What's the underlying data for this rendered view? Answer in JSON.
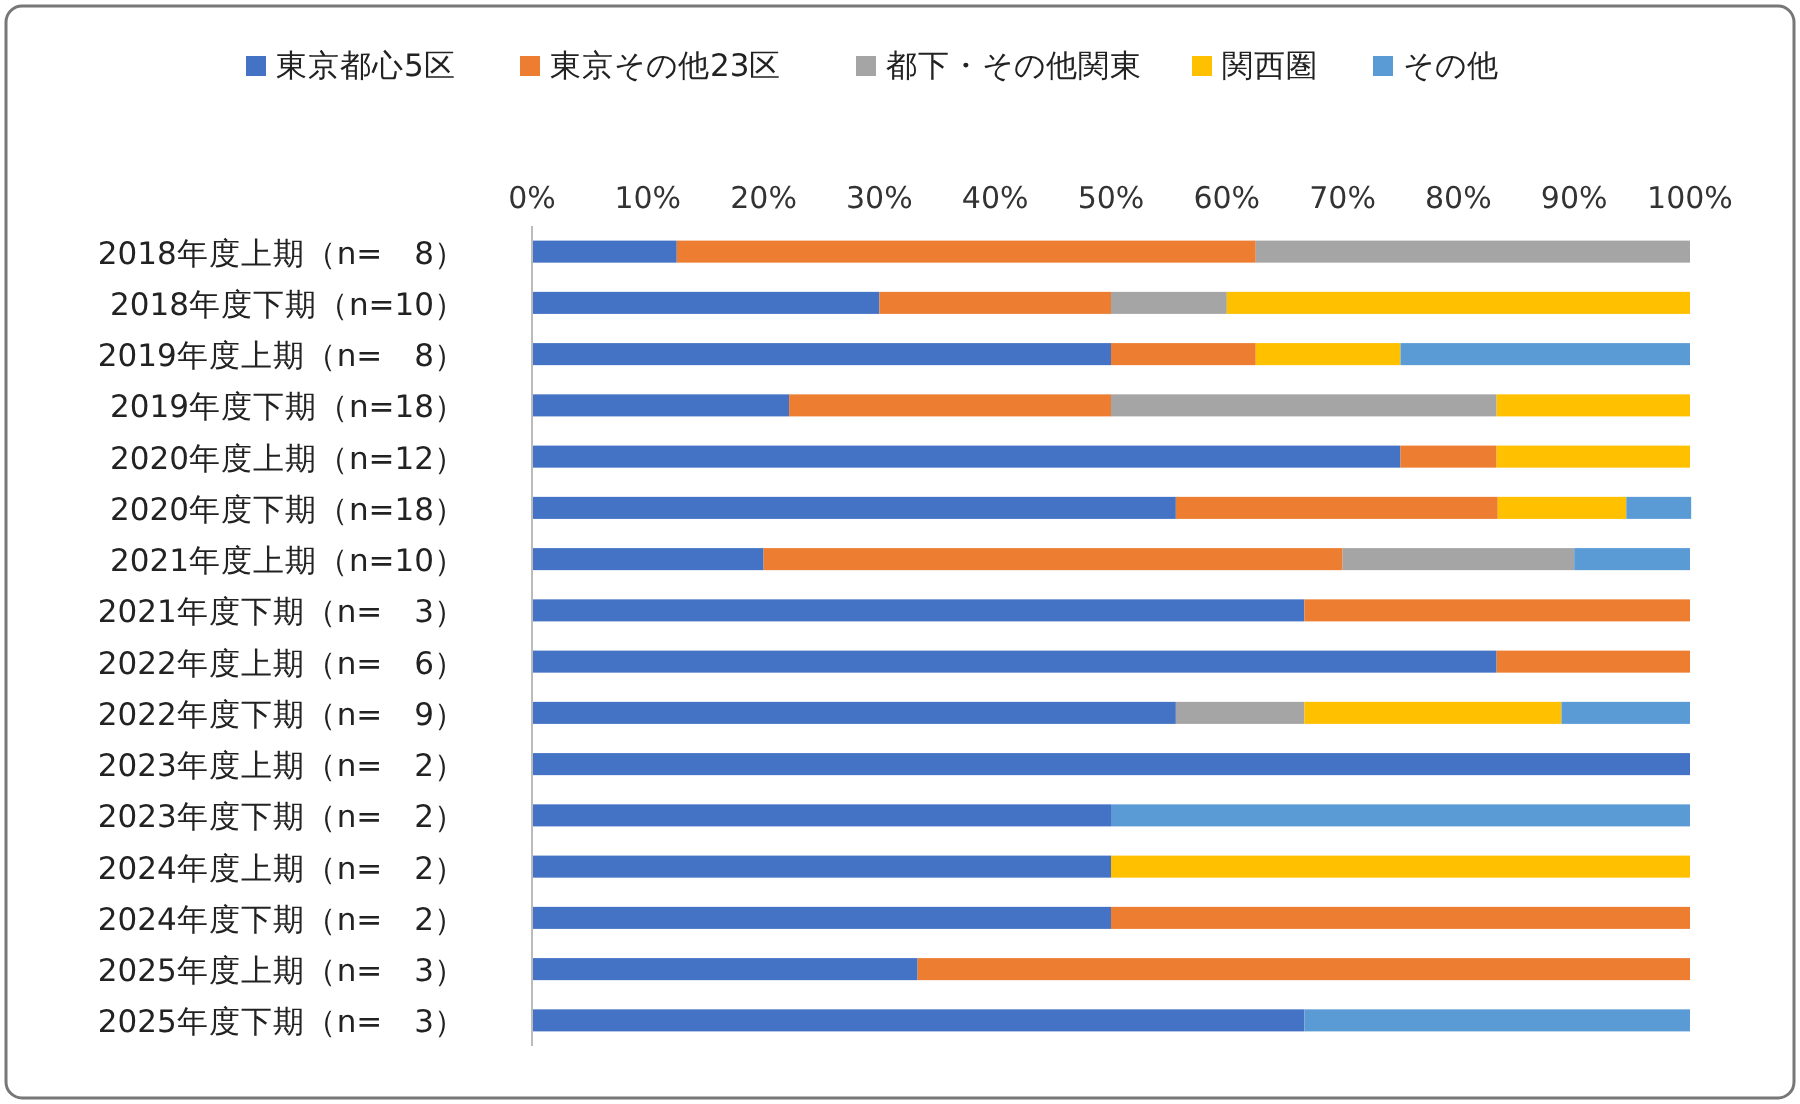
{
  "chart_data": {
    "type": "bar",
    "orientation": "horizontal",
    "stacked": true,
    "legend": "top",
    "categories": [
      "2018年度上期（n=　8）",
      "2018年度下期（n=10）",
      "2019年度上期（n=　8）",
      "2019年度下期（n=18）",
      "2020年度上期（n=12）",
      "2020年度下期（n=18）",
      "2021年度上期（n=10）",
      "2021年度下期（n=　3）",
      "2022年度上期（n=　6）",
      "2022年度下期（n=　9）",
      "2023年度上期（n=　2）",
      "2023年度下期（n=　2）",
      "2024年度上期（n=　2）",
      "2024年度下期（n=　2）",
      "2025年度上期（n=　3）",
      "2025年度下期（n=　3）"
    ],
    "series": [
      {
        "name": "東京都心5区",
        "color": "#4472c4",
        "values": [
          12.5,
          30,
          50,
          22.2,
          75,
          55.6,
          20,
          66.7,
          83.3,
          55.6,
          100,
          50,
          50,
          50,
          33.3,
          66.7
        ]
      },
      {
        "name": "東京その他23区",
        "color": "#ed7d31",
        "values": [
          50,
          20,
          12.5,
          27.8,
          8.3,
          27.8,
          50,
          33.3,
          16.7,
          0,
          0,
          0,
          0,
          50,
          66.7,
          0
        ]
      },
      {
        "name": "都下・その他関東",
        "color": "#a5a5a5",
        "values": [
          37.5,
          10,
          0,
          33.3,
          0,
          0,
          20,
          0,
          0,
          11.1,
          0,
          0,
          0,
          0,
          0,
          0
        ]
      },
      {
        "name": "関西圏",
        "color": "#ffc000",
        "values": [
          0,
          40,
          12.5,
          16.7,
          16.7,
          11.1,
          0,
          0,
          0,
          22.2,
          0,
          0,
          50,
          0,
          0,
          0
        ]
      },
      {
        "name": "その他",
        "color": "#5b9bd5",
        "values": [
          0,
          0,
          25,
          0,
          0,
          5.6,
          10,
          0,
          0,
          11.1,
          0,
          50,
          0,
          0,
          0,
          33.3
        ]
      }
    ],
    "xlim": [
      0,
      100
    ],
    "xticks": [
      {
        "value": 0,
        "label": "0%"
      },
      {
        "value": 10,
        "label": "10%"
      },
      {
        "value": 20,
        "label": "20%"
      },
      {
        "value": 30,
        "label": "30%"
      },
      {
        "value": 40,
        "label": "40%"
      },
      {
        "value": 50,
        "label": "50%"
      },
      {
        "value": 60,
        "label": "60%"
      },
      {
        "value": 70,
        "label": "70%"
      },
      {
        "value": 80,
        "label": "80%"
      },
      {
        "value": 90,
        "label": "90%"
      },
      {
        "value": 100,
        "label": "100%"
      }
    ]
  }
}
